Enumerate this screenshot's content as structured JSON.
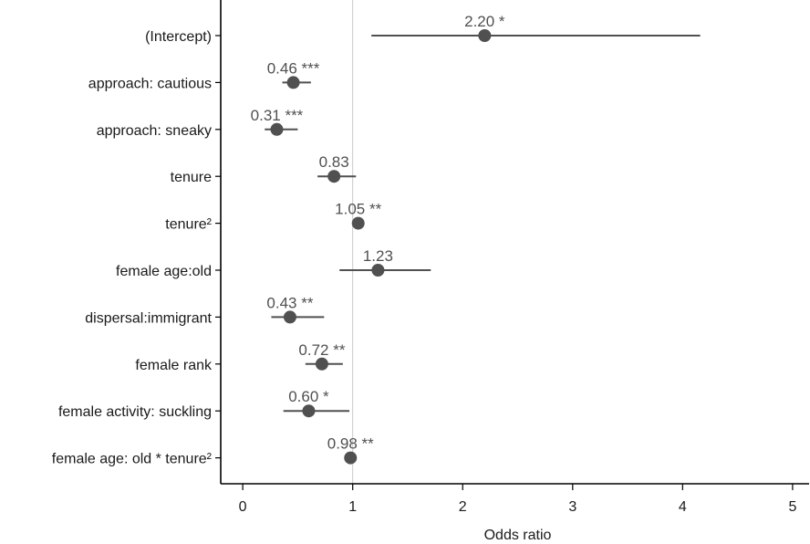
{
  "chart_data": {
    "type": "scatter",
    "subtype": "forest-plot",
    "title": "",
    "xlabel": "Odds ratio",
    "ylabel": "",
    "xlim": [
      -0.2,
      5.15
    ],
    "xticks": [
      0,
      1,
      2,
      3,
      4,
      5
    ],
    "tick_labels": [
      "0",
      "1",
      "2",
      "3",
      "4",
      "5"
    ],
    "reference_line": 1,
    "grid": false,
    "colors": {
      "estimate": "#505050",
      "reference": "#c8c8c8",
      "axis": "#000000",
      "label": "#505050"
    },
    "terms": [
      {
        "label": "(Intercept)",
        "estimate": 2.2,
        "ci": [
          1.17,
          4.16
        ],
        "value_label": "2.20 *"
      },
      {
        "label": "approach: cautious",
        "estimate": 0.46,
        "ci": [
          0.36,
          0.62
        ],
        "value_label": "0.46 ***"
      },
      {
        "label": "approach: sneaky",
        "estimate": 0.31,
        "ci": [
          0.2,
          0.5
        ],
        "value_label": "0.31 ***"
      },
      {
        "label": "tenure",
        "estimate": 0.83,
        "ci": [
          0.68,
          1.03
        ],
        "value_label": "0.83"
      },
      {
        "label": "tenure²",
        "estimate": 1.05,
        "ci": [
          1.03,
          1.07
        ],
        "value_label": "1.05 **"
      },
      {
        "label": "female age:old",
        "estimate": 1.23,
        "ci": [
          0.88,
          1.71
        ],
        "value_label": "1.23"
      },
      {
        "label": "dispersal:immigrant",
        "estimate": 0.43,
        "ci": [
          0.26,
          0.74
        ],
        "value_label": "0.43 **"
      },
      {
        "label": "female rank",
        "estimate": 0.72,
        "ci": [
          0.57,
          0.91
        ],
        "value_label": "0.72 **"
      },
      {
        "label": "female activity: suckling",
        "estimate": 0.6,
        "ci": [
          0.37,
          0.97
        ],
        "value_label": "0.60 *"
      },
      {
        "label": "female age: old * tenure²",
        "estimate": 0.98,
        "ci": [
          0.97,
          0.99
        ],
        "value_label": "0.98 **"
      }
    ]
  }
}
